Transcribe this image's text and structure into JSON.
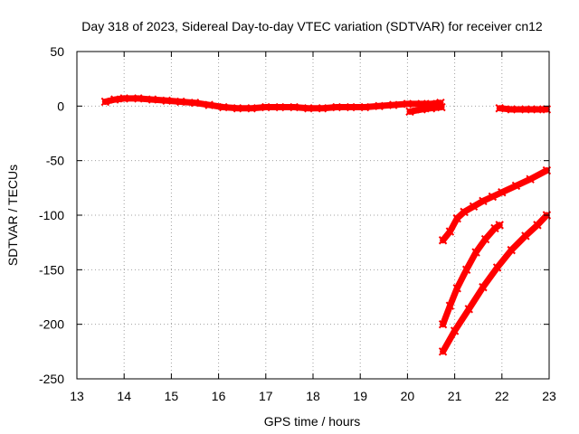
{
  "chart_data": {
    "type": "line",
    "title": "Day 318 of 2023, Sidereal Day-to-day VTEC variation (SDTVAR) for receiver cn12",
    "xlabel": "GPS time / hours",
    "ylabel": "SDTVAR / TECUs",
    "xlim": [
      13,
      23
    ],
    "ylim": [
      -250,
      50
    ],
    "xticks": [
      13,
      14,
      15,
      16,
      17,
      18,
      19,
      20,
      21,
      22,
      23
    ],
    "yticks": [
      50,
      0,
      -50,
      -100,
      -150,
      -200,
      -250
    ],
    "grid": true,
    "marker_color": "#ff0000",
    "series": [
      {
        "name": "main",
        "points": [
          [
            13.6,
            4
          ],
          [
            13.8,
            6
          ],
          [
            14.0,
            7
          ],
          [
            14.3,
            7
          ],
          [
            14.6,
            6
          ],
          [
            14.9,
            5
          ],
          [
            15.2,
            4
          ],
          [
            15.5,
            3
          ],
          [
            15.8,
            1
          ],
          [
            16.1,
            -1
          ],
          [
            16.4,
            -2
          ],
          [
            16.7,
            -2
          ],
          [
            17.0,
            -1
          ],
          [
            17.3,
            -1
          ],
          [
            17.6,
            -1
          ],
          [
            17.9,
            -2
          ],
          [
            18.2,
            -2
          ],
          [
            18.5,
            -1
          ],
          [
            18.8,
            -1
          ],
          [
            19.1,
            -1
          ],
          [
            19.4,
            0
          ],
          [
            19.7,
            1
          ],
          [
            20.0,
            2
          ],
          [
            20.3,
            2
          ],
          [
            20.5,
            2
          ],
          [
            20.7,
            3
          ]
        ]
      },
      {
        "name": "segment-a",
        "points": [
          [
            20.05,
            -5
          ],
          [
            20.3,
            -3
          ],
          [
            20.5,
            -2
          ],
          [
            20.72,
            -1
          ]
        ]
      },
      {
        "name": "segment-b",
        "points": [
          [
            21.95,
            -2
          ],
          [
            22.2,
            -3
          ],
          [
            22.5,
            -3
          ],
          [
            22.75,
            -3
          ],
          [
            22.95,
            -3
          ]
        ]
      },
      {
        "name": "segment-c",
        "points": [
          [
            20.75,
            -123
          ],
          [
            20.9,
            -115
          ],
          [
            21.05,
            -103
          ],
          [
            21.2,
            -97
          ],
          [
            21.4,
            -92
          ],
          [
            21.6,
            -87
          ],
          [
            21.8,
            -83
          ],
          [
            22.0,
            -79
          ],
          [
            22.3,
            -73
          ],
          [
            22.6,
            -67
          ],
          [
            22.95,
            -59
          ]
        ]
      },
      {
        "name": "segment-d",
        "points": [
          [
            20.75,
            -200
          ],
          [
            20.9,
            -183
          ],
          [
            21.05,
            -167
          ],
          [
            21.25,
            -150
          ],
          [
            21.45,
            -134
          ],
          [
            21.65,
            -122
          ],
          [
            21.85,
            -112
          ],
          [
            21.95,
            -109
          ]
        ]
      },
      {
        "name": "segment-e",
        "points": [
          [
            20.75,
            -225
          ],
          [
            21.0,
            -206
          ],
          [
            21.3,
            -186
          ],
          [
            21.6,
            -166
          ],
          [
            21.9,
            -148
          ],
          [
            22.2,
            -132
          ],
          [
            22.5,
            -119
          ],
          [
            22.75,
            -109
          ],
          [
            22.95,
            -100
          ]
        ]
      }
    ]
  }
}
